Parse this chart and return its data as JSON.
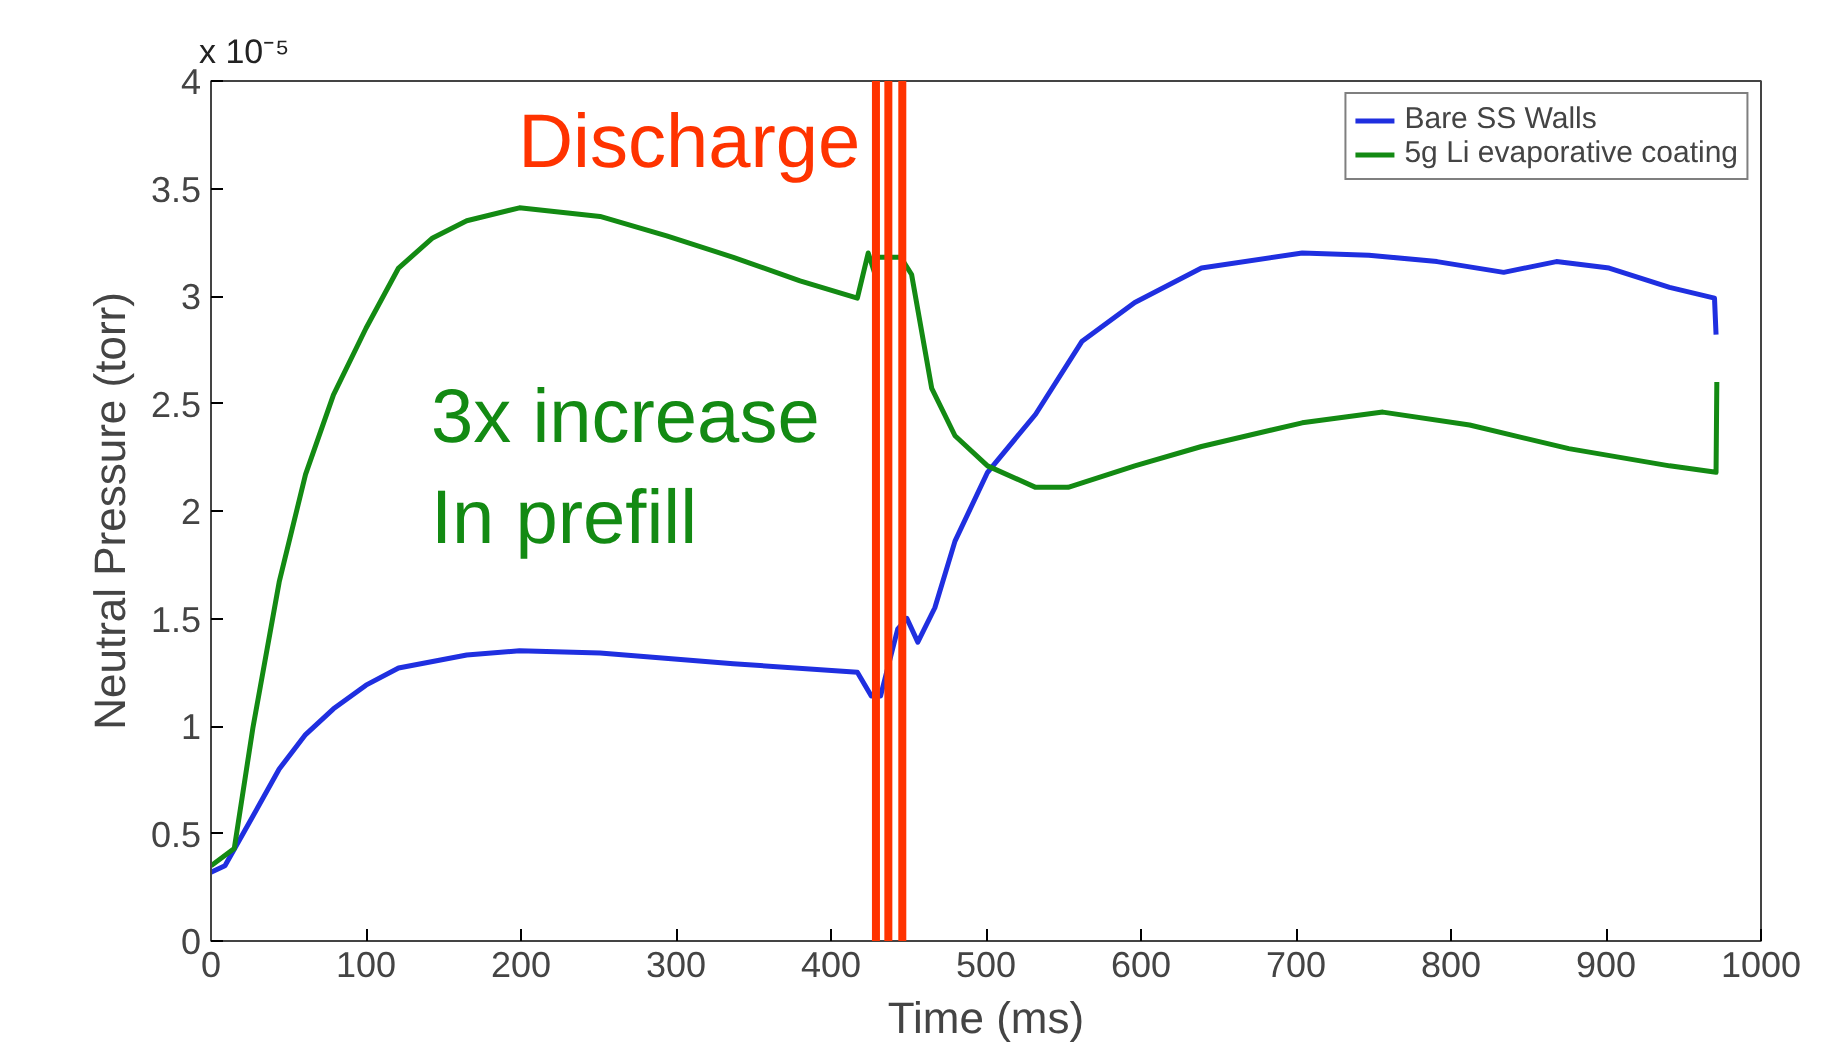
{
  "chart_data": {
    "type": "line",
    "xlabel": "Time (ms)",
    "ylabel": "Neutral Pressure (torr)",
    "xlim": [
      0,
      1000
    ],
    "xticks": [
      0,
      100,
      200,
      300,
      400,
      500,
      600,
      700,
      800,
      900,
      1000
    ],
    "ylim": [
      0,
      4
    ],
    "yticks": [
      0,
      0.5,
      1,
      1.5,
      2,
      2.5,
      3,
      3.5,
      4
    ],
    "grid": false,
    "legend": "top right",
    "line_style": "solid",
    "series": [
      {
        "name": "Bare SS Walls",
        "color": "#1f2fe0",
        "x": [
          0,
          9,
          27,
          44,
          61,
          79,
          100,
          121,
          165,
          199,
          251,
          337,
          417,
          426,
          432,
          443,
          449,
          456,
          467,
          480,
          501,
          532,
          562,
          596,
          639,
          704,
          747,
          791,
          834,
          868,
          902,
          941,
          970,
          971
        ],
        "values": [
          0.32,
          0.35,
          0.58,
          0.8,
          0.96,
          1.08,
          1.19,
          1.27,
          1.33,
          1.35,
          1.34,
          1.29,
          1.25,
          1.14,
          1.14,
          1.45,
          1.5,
          1.39,
          1.55,
          1.86,
          2.18,
          2.45,
          2.79,
          2.97,
          3.13,
          3.2,
          3.19,
          3.16,
          3.11,
          3.16,
          3.13,
          3.04,
          2.99,
          2.82
        ]
      },
      {
        "name": "5g Li evaporative coating",
        "color": "#138a13",
        "x": [
          0,
          15,
          27,
          44,
          61,
          79,
          100,
          121,
          143,
          165,
          199,
          251,
          294,
          337,
          380,
          417,
          424,
          428,
          430,
          445,
          452,
          465,
          480,
          501,
          532,
          553,
          596,
          639,
          704,
          756,
          812,
          876,
          941,
          971,
          971.5
        ],
        "values": [
          0.35,
          0.43,
          0.99,
          1.67,
          2.17,
          2.54,
          2.85,
          3.13,
          3.27,
          3.35,
          3.41,
          3.37,
          3.28,
          3.18,
          3.07,
          2.99,
          3.2,
          3.11,
          3.18,
          3.18,
          3.1,
          2.57,
          2.35,
          2.21,
          2.11,
          2.11,
          2.21,
          2.3,
          2.41,
          2.46,
          2.4,
          2.29,
          2.21,
          2.18,
          2.6
        ]
      }
    ],
    "ref_lines": [
      {
        "axis": "x",
        "value": 429,
        "color": "#ff3300"
      },
      {
        "axis": "x",
        "value": 437,
        "label": "Discharge",
        "color": "#ff3300"
      },
      {
        "axis": "x",
        "value": 446,
        "color": "#ff3300"
      }
    ],
    "annotations": [
      "x 10⁻⁵",
      "3x increase\nIn prefill"
    ]
  }
}
